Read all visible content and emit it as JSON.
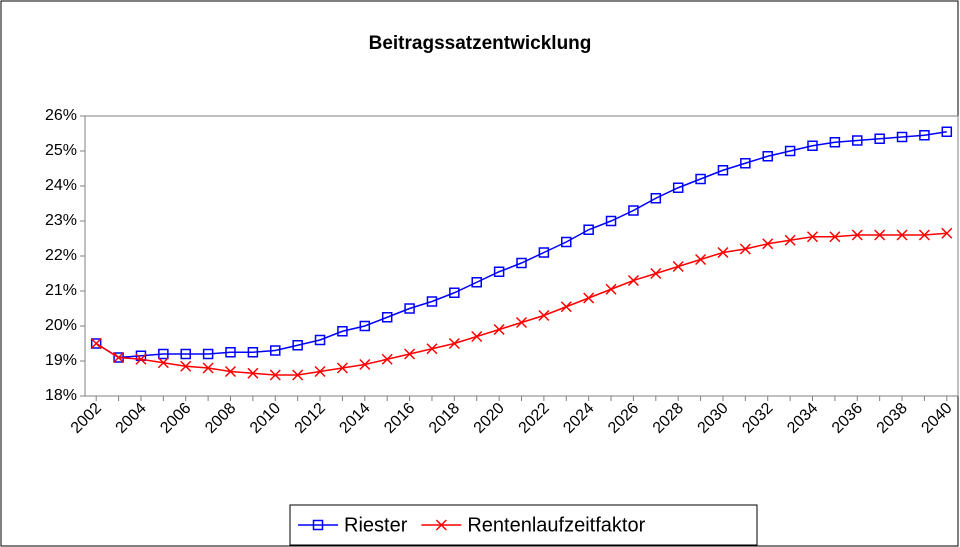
{
  "chart_data": {
    "type": "line",
    "title": "Beitragssatzentwicklung",
    "categories": [
      "2002",
      null,
      "2004",
      null,
      "2006",
      null,
      "2008",
      null,
      "2010",
      null,
      "2012",
      null,
      "2014",
      null,
      "2016",
      null,
      "2018",
      null,
      "2020",
      null,
      "2022",
      null,
      "2024",
      null,
      "2026",
      null,
      "2028",
      null,
      "2030",
      null,
      "2032",
      null,
      "2034",
      null,
      "2036",
      null,
      "2038",
      null,
      "2040"
    ],
    "series": [
      {
        "name": "Riester",
        "color": "#0000ff",
        "marker": "square",
        "values": [
          19.5,
          19.1,
          19.15,
          19.2,
          19.2,
          19.2,
          19.25,
          19.25,
          19.3,
          19.45,
          19.6,
          19.85,
          20.0,
          20.25,
          20.5,
          20.7,
          20.95,
          21.25,
          21.55,
          21.8,
          22.1,
          22.4,
          22.75,
          23.0,
          23.3,
          23.65,
          23.95,
          24.2,
          24.45,
          24.65,
          24.85,
          25.0,
          25.15,
          25.25,
          25.3,
          25.35,
          25.4,
          25.45,
          25.55
        ]
      },
      {
        "name": "Rentenlaufzeitfaktor",
        "color": "#ff0000",
        "marker": "x",
        "values": [
          19.5,
          19.1,
          19.05,
          18.95,
          18.85,
          18.8,
          18.7,
          18.65,
          18.6,
          18.6,
          18.7,
          18.8,
          18.9,
          19.05,
          19.2,
          19.35,
          19.5,
          19.7,
          19.9,
          20.1,
          20.3,
          20.55,
          20.8,
          21.05,
          21.3,
          21.5,
          21.7,
          21.9,
          22.1,
          22.2,
          22.35,
          22.45,
          22.55,
          22.55,
          22.6,
          22.6,
          22.6,
          22.6,
          22.65
        ]
      }
    ],
    "ylim": [
      18,
      26
    ],
    "yticks": [
      {
        "value": 18,
        "label": "18%"
      },
      {
        "value": 19,
        "label": "19%"
      },
      {
        "value": 20,
        "label": "20%"
      },
      {
        "value": 21,
        "label": "21%"
      },
      {
        "value": 22,
        "label": "22%"
      },
      {
        "value": 23,
        "label": "23%"
      },
      {
        "value": 24,
        "label": "24%"
      },
      {
        "value": 25,
        "label": "25%"
      },
      {
        "value": 26,
        "label": "26%"
      }
    ],
    "legend": "bottom"
  }
}
